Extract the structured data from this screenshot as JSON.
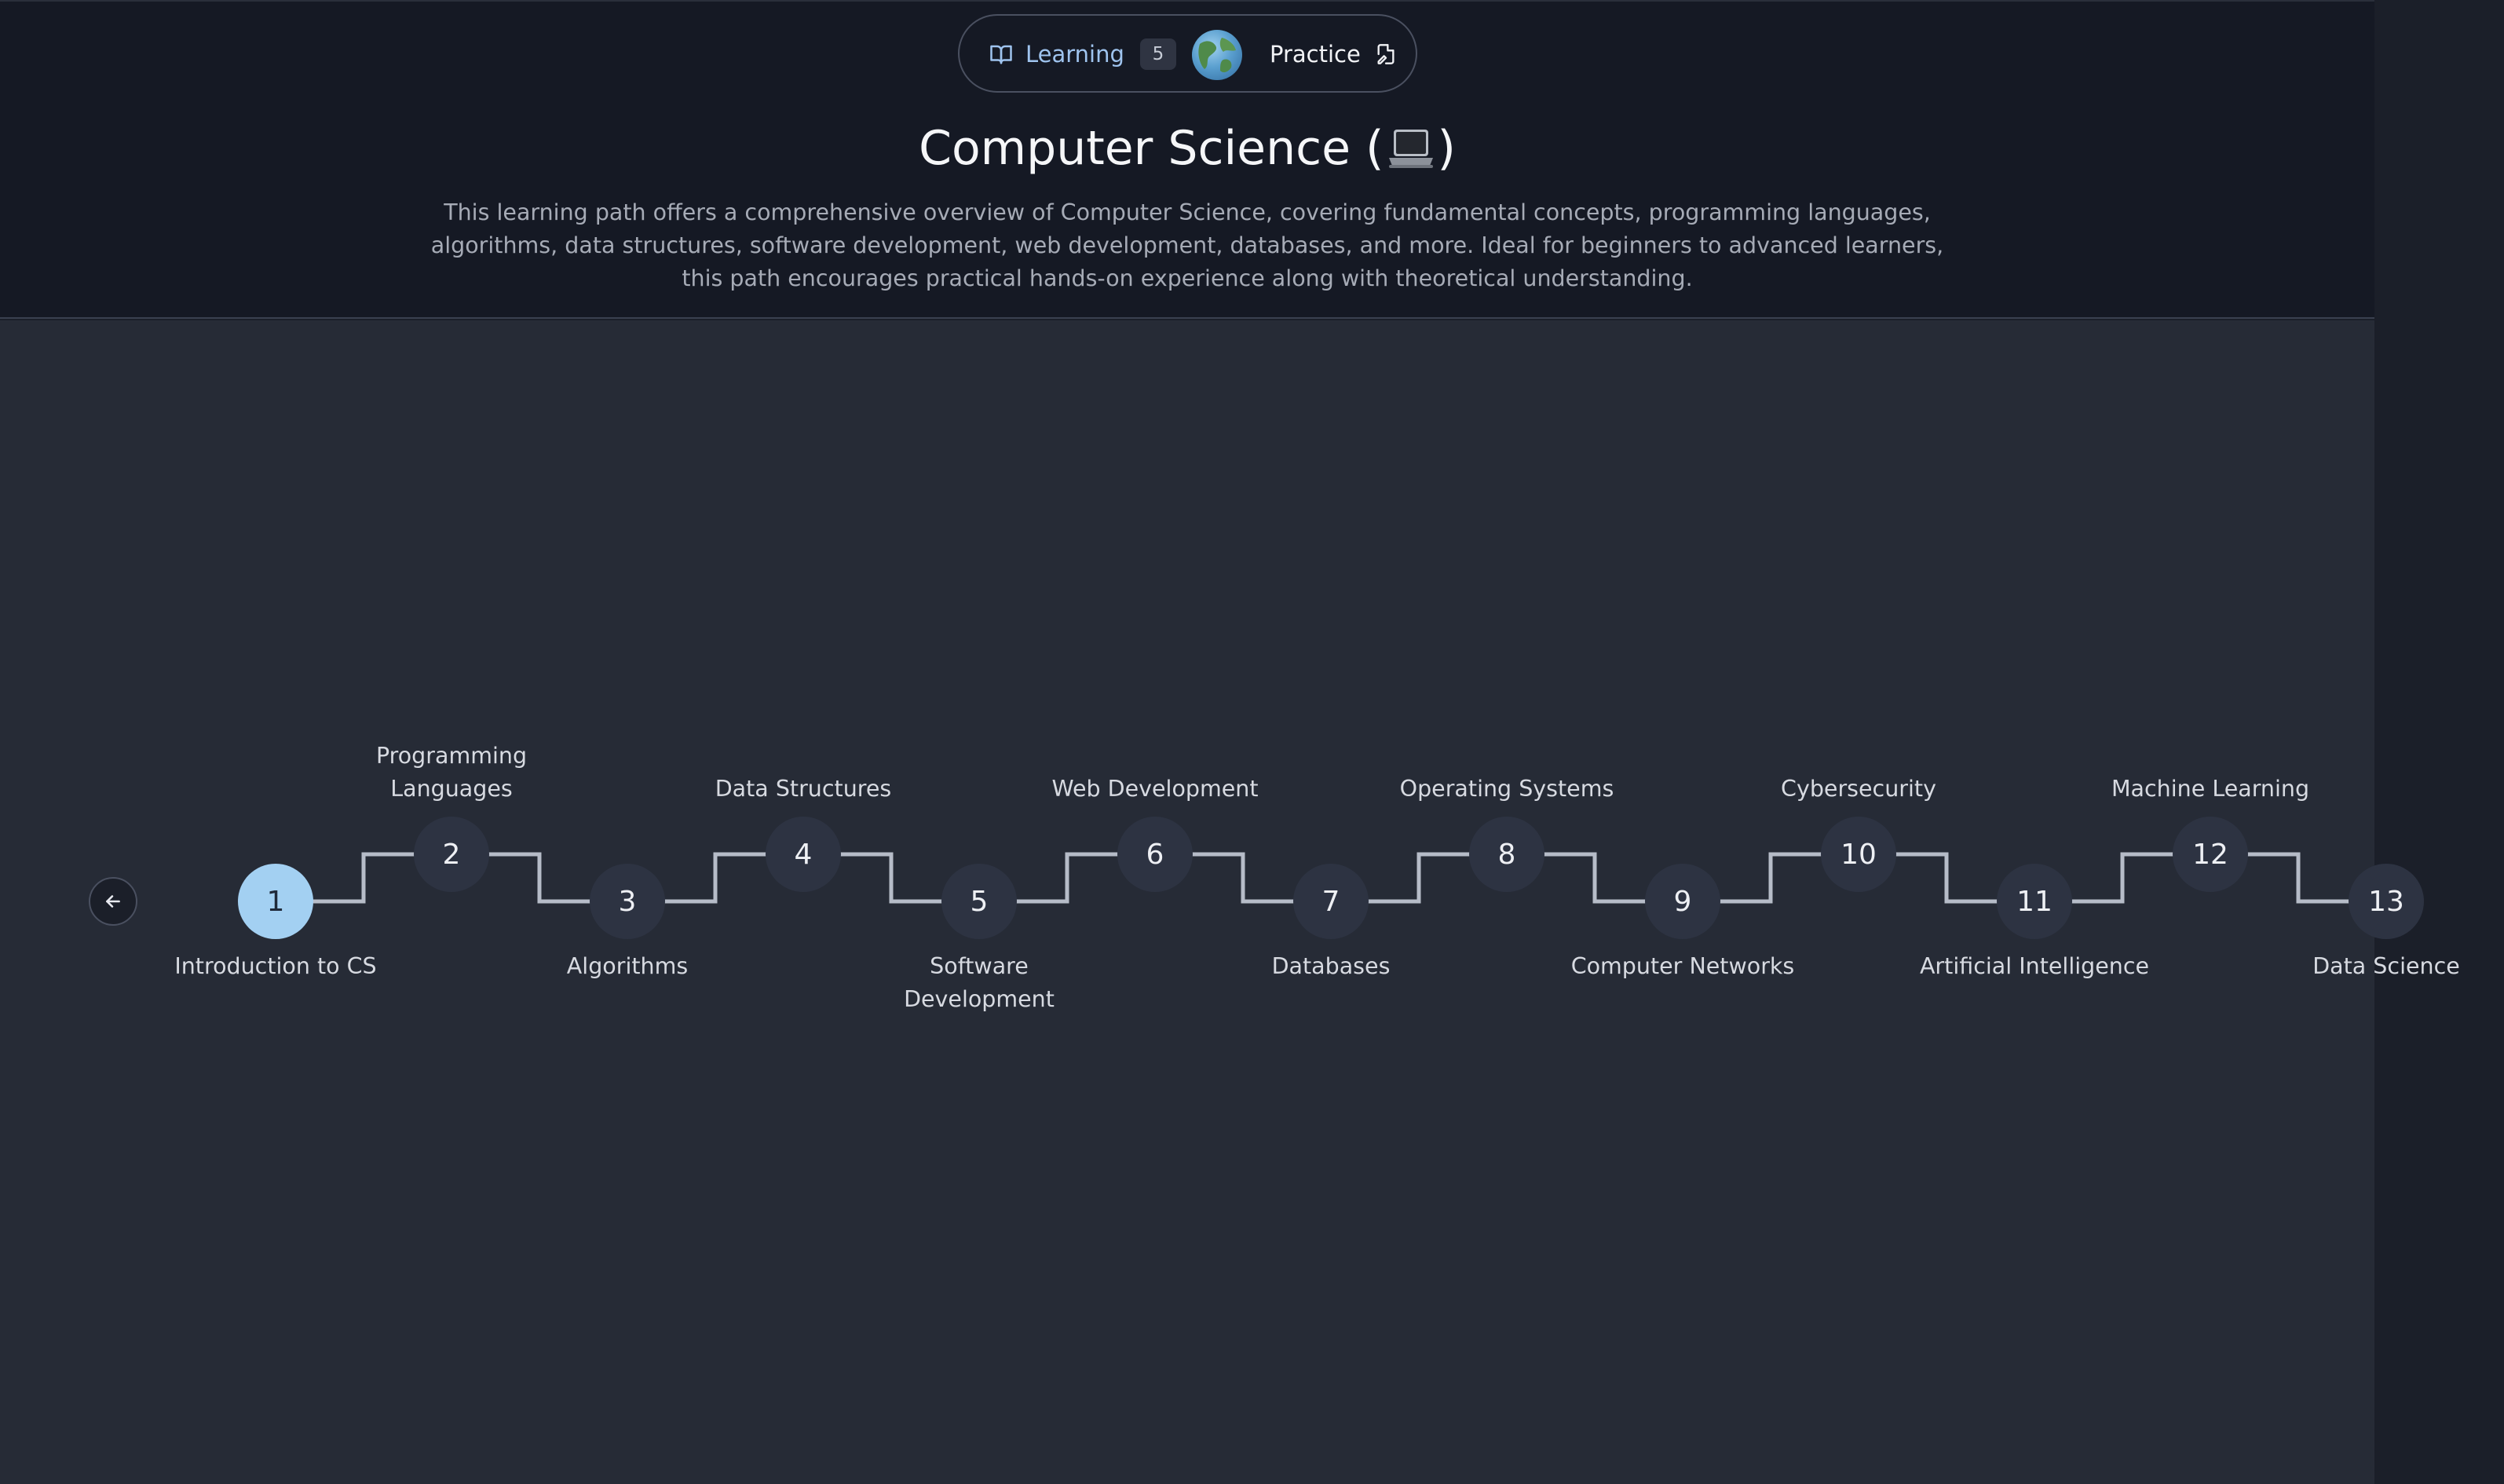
{
  "mode_switch": {
    "learning_label": "Learning",
    "learning_count": "5",
    "practice_label": "Practice"
  },
  "page": {
    "title_text": "Computer Science (",
    "title_close": ")",
    "title_icon": "laptop-icon",
    "description": "This learning path offers a comprehensive overview of Computer Science, covering fundamental concepts, programming languages, algorithms, data structures, software development, web development, databases, and more. Ideal for beginners to advanced learners, this path encourages practical hands-on experience along with theoretical understanding."
  },
  "colors": {
    "accent": "#a3d0f2",
    "node_bg": "#2d3342",
    "path_line": "#b6bcc8"
  },
  "path": {
    "back_icon": "arrow-left-icon",
    "steps": [
      {
        "number": "1",
        "label": "Introduction to CS",
        "active": true
      },
      {
        "number": "2",
        "label": "Programming Languages"
      },
      {
        "number": "3",
        "label": "Algorithms"
      },
      {
        "number": "4",
        "label": "Data Structures"
      },
      {
        "number": "5",
        "label": "Software Development"
      },
      {
        "number": "6",
        "label": "Web Development"
      },
      {
        "number": "7",
        "label": "Databases"
      },
      {
        "number": "8",
        "label": "Operating Systems"
      },
      {
        "number": "9",
        "label": "Computer Networks"
      },
      {
        "number": "10",
        "label": "Cybersecurity"
      },
      {
        "number": "11",
        "label": "Artificial Intelligence"
      },
      {
        "number": "12",
        "label": "Machine Learning"
      },
      {
        "number": "13",
        "label": "Data Science"
      }
    ]
  }
}
